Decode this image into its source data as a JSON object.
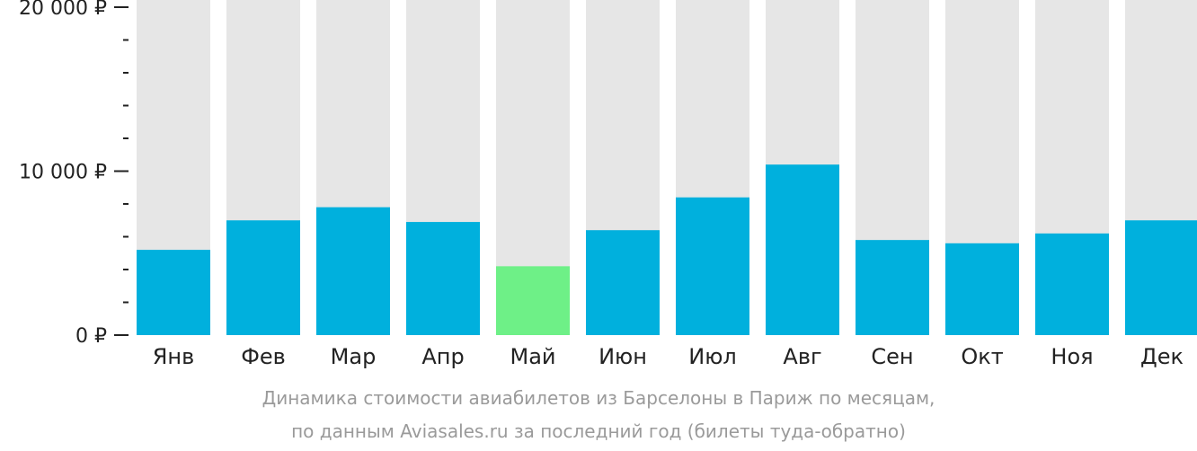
{
  "chart_data": {
    "type": "bar",
    "categories": [
      "Янв",
      "Фев",
      "Мар",
      "Апр",
      "Май",
      "Июн",
      "Июл",
      "Авг",
      "Сен",
      "Окт",
      "Ноя",
      "Дек"
    ],
    "values": [
      5200,
      7000,
      7800,
      6900,
      4200,
      6400,
      8400,
      10400,
      5800,
      5600,
      6200,
      7000
    ],
    "ylim": [
      0,
      20000
    ],
    "y_ticks": [
      {
        "value": 0,
        "label": "0 ₽"
      },
      {
        "value": 10000,
        "label": "10 000 ₽"
      },
      {
        "value": 20000,
        "label": "20 000 ₽"
      }
    ],
    "y_minor_step": 2000,
    "highlight_index": 4,
    "colors": {
      "bar": "#00b0dd",
      "highlight": "#6ef087",
      "track": "#e6e6e6",
      "axis": "#222222"
    },
    "xlabel": "",
    "ylabel": "",
    "grid": false
  },
  "caption": {
    "line1": "Динамика стоимости авиабилетов из Барселоны в Париж по месяцам,",
    "line2": "по данным Aviasales.ru за последний год (билеты туда-обратно)"
  }
}
